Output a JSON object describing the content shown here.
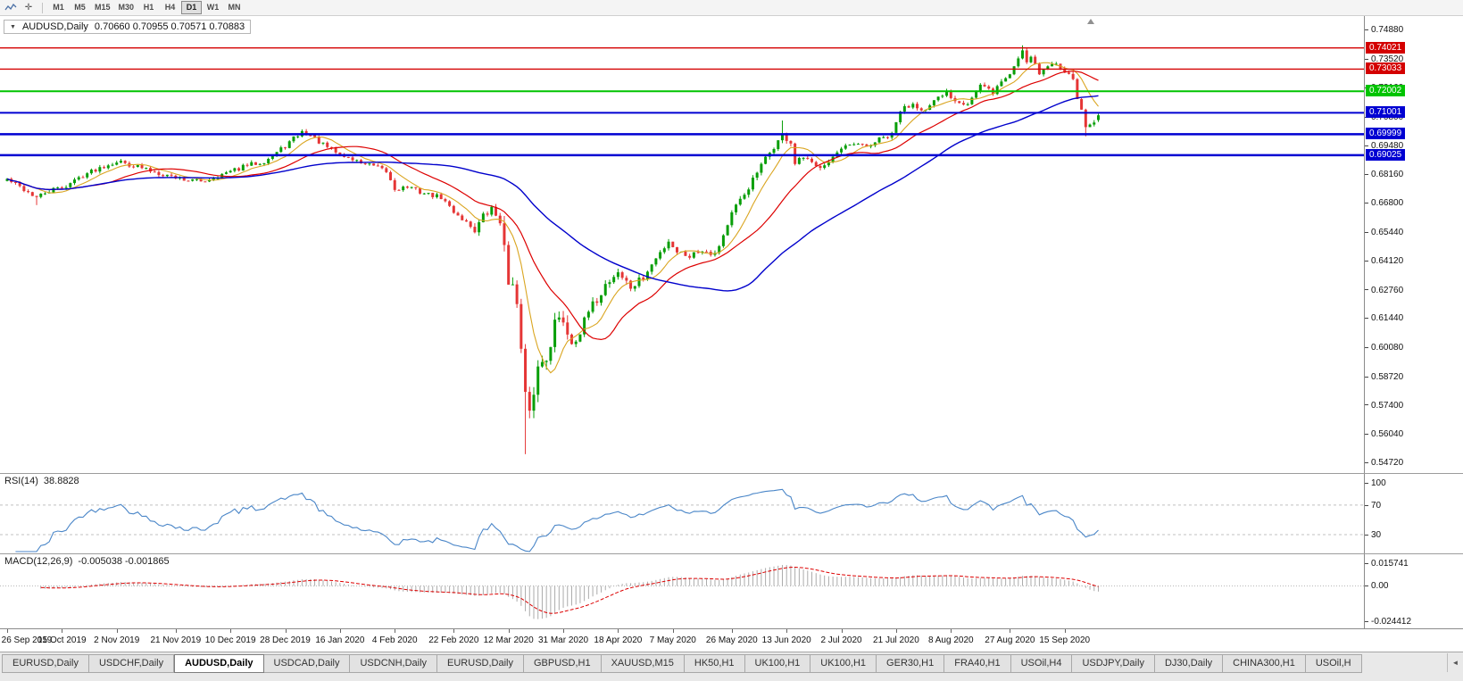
{
  "icons": {
    "dropdown": "▼",
    "crosshair": "✛",
    "tab_scroll": "◄",
    "shift_marker": "▲",
    "chart_tool": "chart-line-icon"
  },
  "toolbar": {
    "timeframes": [
      "M1",
      "M5",
      "M15",
      "M30",
      "H1",
      "H4",
      "D1",
      "W1",
      "MN"
    ],
    "active_timeframe": "D1"
  },
  "chart": {
    "title": "AUDUSD,Daily",
    "ohlc_text": "0.70660 0.70955 0.70571 0.70883",
    "price_axis_ticks": [
      "0.74880",
      "0.73520",
      "0.72160",
      "0.70800",
      "0.69480",
      "0.68160",
      "0.66800",
      "0.65440",
      "0.64120",
      "0.62760",
      "0.61440",
      "0.60080",
      "0.58720",
      "0.57400",
      "0.56040",
      "0.54720"
    ],
    "hlines": [
      {
        "value": 0.74021,
        "label": "0.74021",
        "color": "#d40000",
        "width": 1.4
      },
      {
        "value": 0.73033,
        "label": "0.73033",
        "color": "#d40000",
        "width": 1.4
      },
      {
        "value": 0.72002,
        "label": "0.72002",
        "color": "#00c400",
        "width": 2
      },
      {
        "value": 0.71001,
        "label": "0.71001",
        "color": "#0000d2",
        "width": 2
      },
      {
        "value": 0.69999,
        "label": "0.69999",
        "color": "#0000d2",
        "width": 2.5
      },
      {
        "value": 0.69025,
        "label": "0.69025",
        "color": "#0000d2",
        "width": 2.5
      }
    ],
    "date_labels": [
      "26 Sep 2019",
      "15 Oct 2019",
      "2 Nov 2019",
      "21 Nov 2019",
      "10 Dec 2019",
      "28 Dec 2019",
      "16 Jan 2020",
      "4 Feb 2020",
      "22 Feb 2020",
      "12 Mar 2020",
      "31 Mar 2020",
      "18 Apr 2020",
      "7 May 2020",
      "26 May 2020",
      "13 Jun 2020",
      "2 Jul 2020",
      "21 Jul 2020",
      "8 Aug 2020",
      "27 Aug 2020",
      "15 Sep 2020"
    ],
    "date_label_days": [
      0,
      13,
      26,
      40,
      53,
      66,
      79,
      92,
      106,
      119,
      132,
      145,
      158,
      172,
      185,
      198,
      211,
      224,
      238,
      251
    ]
  },
  "rsi": {
    "name": "RSI(14)",
    "value": "38.8828",
    "period": 14,
    "ticks": [
      "100",
      "70",
      "30"
    ],
    "tick_values": [
      100,
      70,
      30
    ],
    "levels": [
      70,
      30
    ],
    "color": "#4a86c8"
  },
  "macd": {
    "name": "MACD(12,26,9)",
    "values_text": "-0.005038 -0.001865",
    "fast": 12,
    "slow": 26,
    "signal": 9,
    "ticks": [
      "0.015741",
      "0.00",
      "-0.024412"
    ],
    "tick_values": [
      0.015741,
      0,
      -0.024412
    ],
    "histogram_color": "#ababab",
    "signal_color": "#dd0000"
  },
  "tabbar": {
    "tabs": [
      "EURUSD,Daily",
      "USDCHF,Daily",
      "AUDUSD,Daily",
      "USDCAD,Daily",
      "USDCNH,Daily",
      "EURUSD,Daily",
      "GBPUSD,H1",
      "XAUUSD,M15",
      "HK50,H1",
      "UK100,H1",
      "UK100,H1",
      "GER30,H1",
      "FRA40,H1",
      "USOil,H4",
      "USDJPY,Daily",
      "DJ30,Daily",
      "CHINA300,H1",
      "USOil,H"
    ],
    "active_index": 2
  },
  "chart_data": {
    "type": "candlestick",
    "symbol": "AUDUSD",
    "timeframe": "Daily",
    "num_candles": 260,
    "seed": 42,
    "price_range": [
      0.5472,
      0.7488
    ],
    "last_candle": [
      0.7066,
      0.70955,
      0.70571,
      0.70883
    ],
    "colors": {
      "up": "#089e08",
      "down": "#e53535"
    },
    "moving_averages": [
      {
        "window": 8,
        "color": "#daa520",
        "width": 1.1
      },
      {
        "window": 21,
        "color": "#dd0000",
        "width": 1.2
      },
      {
        "window": 55,
        "color": "#0000cc",
        "width": 1.4
      }
    ],
    "anchors": [
      [
        0,
        0.679
      ],
      [
        3,
        0.6755
      ],
      [
        7,
        0.6705
      ],
      [
        10,
        0.6735
      ],
      [
        14,
        0.676
      ],
      [
        18,
        0.681
      ],
      [
        22,
        0.6845
      ],
      [
        26,
        0.6875
      ],
      [
        30,
        0.6855
      ],
      [
        34,
        0.683
      ],
      [
        38,
        0.681
      ],
      [
        42,
        0.679
      ],
      [
        46,
        0.678
      ],
      [
        50,
        0.6805
      ],
      [
        53,
        0.6825
      ],
      [
        57,
        0.6855
      ],
      [
        61,
        0.6875
      ],
      [
        64,
        0.6915
      ],
      [
        66,
        0.6945
      ],
      [
        68,
        0.698
      ],
      [
        70,
        0.701
      ],
      [
        72,
        0.6995
      ],
      [
        75,
        0.695
      ],
      [
        79,
        0.6905
      ],
      [
        83,
        0.6875
      ],
      [
        87,
        0.685
      ],
      [
        90,
        0.6825
      ],
      [
        92,
        0.6745
      ],
      [
        95,
        0.6755
      ],
      [
        99,
        0.6725
      ],
      [
        103,
        0.6705
      ],
      [
        106,
        0.664
      ],
      [
        109,
        0.659
      ],
      [
        111,
        0.6555
      ],
      [
        113,
        0.6615
      ],
      [
        115,
        0.665
      ],
      [
        117,
        0.66
      ],
      [
        119,
        0.631
      ],
      [
        120,
        0.634
      ],
      [
        121,
        0.619
      ],
      [
        122,
        0.599
      ],
      [
        123,
        0.577
      ],
      [
        124,
        0.568
      ],
      [
        125,
        0.581
      ],
      [
        126,
        0.591
      ],
      [
        128,
        0.597
      ],
      [
        130,
        0.612
      ],
      [
        132,
        0.614
      ],
      [
        134,
        0.603
      ],
      [
        136,
        0.608
      ],
      [
        138,
        0.617
      ],
      [
        140,
        0.623
      ],
      [
        142,
        0.63
      ],
      [
        145,
        0.636
      ],
      [
        148,
        0.6285
      ],
      [
        151,
        0.633
      ],
      [
        154,
        0.642
      ],
      [
        157,
        0.6505
      ],
      [
        159,
        0.6455
      ],
      [
        162,
        0.6435
      ],
      [
        165,
        0.6465
      ],
      [
        168,
        0.6445
      ],
      [
        170,
        0.653
      ],
      [
        172,
        0.663
      ],
      [
        175,
        0.672
      ],
      [
        178,
        0.682
      ],
      [
        181,
        0.6915
      ],
      [
        184,
        0.6995
      ],
      [
        186,
        0.696
      ],
      [
        187,
        0.686
      ],
      [
        189,
        0.689
      ],
      [
        192,
        0.6845
      ],
      [
        195,
        0.688
      ],
      [
        198,
        0.6925
      ],
      [
        201,
        0.695
      ],
      [
        204,
        0.694
      ],
      [
        207,
        0.6975
      ],
      [
        210,
        0.6995
      ],
      [
        212,
        0.711
      ],
      [
        215,
        0.7145
      ],
      [
        218,
        0.711
      ],
      [
        221,
        0.7165
      ],
      [
        223,
        0.7195
      ],
      [
        225,
        0.716
      ],
      [
        228,
        0.7145
      ],
      [
        231,
        0.7225
      ],
      [
        234,
        0.7195
      ],
      [
        236,
        0.7245
      ],
      [
        238,
        0.728
      ],
      [
        240,
        0.7355
      ],
      [
        241,
        0.7395
      ],
      [
        242,
        0.734
      ],
      [
        243,
        0.737
      ],
      [
        245,
        0.7285
      ],
      [
        247,
        0.7315
      ],
      [
        249,
        0.733
      ],
      [
        251,
        0.73
      ],
      [
        252,
        0.729
      ],
      [
        253,
        0.7245
      ],
      [
        254,
        0.7175
      ],
      [
        255,
        0.7105
      ],
      [
        256,
        0.7035
      ],
      [
        257,
        0.7045
      ],
      [
        258,
        0.7065
      ],
      [
        259,
        0.7088
      ]
    ],
    "special_wicks": [
      {
        "day": 7,
        "low": 0.667
      },
      {
        "day": 119,
        "low": 0.6313
      },
      {
        "day": 123,
        "low": 0.551
      },
      {
        "day": 184,
        "high": 0.7064
      },
      {
        "day": 241,
        "high": 0.7414
      },
      {
        "day": 256,
        "low": 0.699
      }
    ],
    "noise_zones": [
      {
        "to": 110,
        "amp": 0.0011
      },
      {
        "to": 117,
        "amp": 0.002
      },
      {
        "to": 133,
        "amp": 0.004
      },
      {
        "to": 150,
        "amp": 0.0022
      },
      {
        "to": 200,
        "amp": 0.0015
      },
      {
        "to": 259,
        "amp": 0.0013
      }
    ]
  }
}
